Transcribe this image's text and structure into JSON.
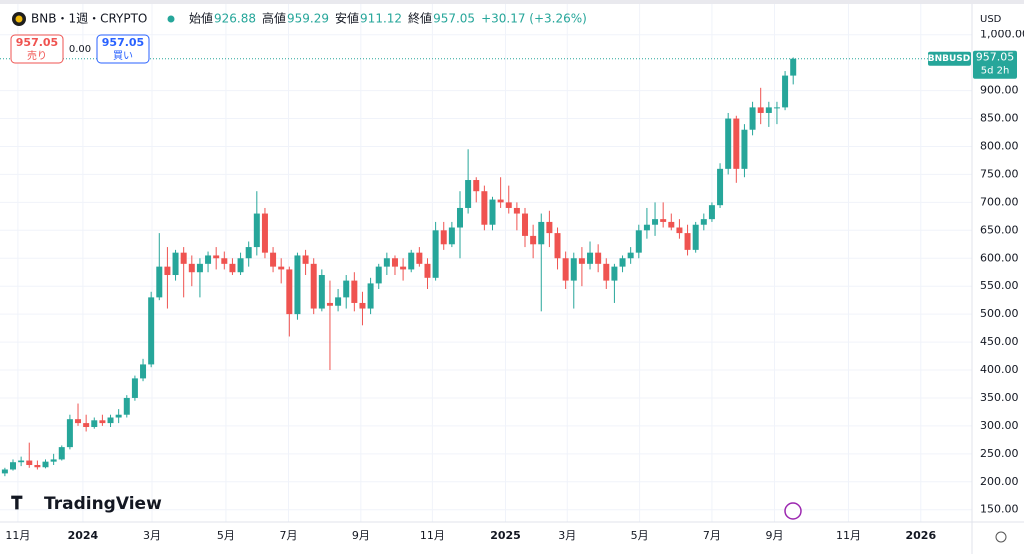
{
  "chart_data": {
    "type": "candlestick",
    "symbol": "BNB・1週・CRYPTO",
    "currency": "USD",
    "ohlc_labels": [
      "始値",
      "高値",
      "安値",
      "終値"
    ],
    "change": "+30.17 (+3.26%)",
    "sell": {
      "price": "957.05",
      "label": "売り"
    },
    "spread": "0.00",
    "buy": {
      "price": "957.05",
      "label": "買い"
    },
    "price_tag": {
      "name": "BNBUSD",
      "countdown": "5d 2h"
    },
    "brand": "TradingView",
    "up_color": "#26a69a",
    "down_color": "#ef5350",
    "grid": true,
    "categories": [
      null,
      null,
      null,
      null,
      null,
      null,
      null,
      null,
      null,
      null,
      null,
      null,
      null,
      null,
      null,
      null,
      null,
      null,
      null,
      null,
      null,
      null,
      null,
      null,
      null,
      null,
      null,
      null,
      null,
      null,
      null,
      null,
      null,
      null,
      null,
      null,
      null,
      null,
      null,
      null,
      null,
      null,
      null,
      null,
      null,
      null,
      null,
      null,
      null,
      null,
      null,
      null,
      null,
      null,
      null,
      null,
      null,
      null,
      null,
      null,
      null,
      null,
      null,
      null,
      null,
      null,
      null,
      null,
      null,
      null,
      null,
      null,
      null,
      null,
      null,
      null,
      null,
      null,
      null,
      null,
      null,
      null,
      null,
      null,
      null,
      null,
      null,
      null,
      null,
      null,
      null,
      null,
      null,
      null,
      null,
      null,
      null,
      null
    ],
    "open": [
      215,
      222,
      235,
      238,
      230,
      226,
      236,
      240,
      262,
      312,
      305,
      298,
      310,
      305,
      315,
      320,
      350,
      385,
      410,
      530,
      585,
      570,
      610,
      590,
      575,
      590,
      605,
      600,
      590,
      575,
      600,
      620,
      680,
      610,
      585,
      580,
      500,
      605,
      590,
      510,
      520,
      515,
      530,
      560,
      520,
      510,
      555,
      585,
      600,
      585,
      580,
      610,
      590,
      565,
      650,
      625,
      655,
      690,
      740,
      720,
      660,
      705,
      700,
      690,
      680,
      640,
      625,
      665,
      645,
      600,
      560,
      600,
      590,
      610,
      590,
      560,
      585,
      600,
      610,
      650,
      660,
      670,
      665,
      655,
      645,
      615,
      660,
      670,
      695,
      760,
      850,
      760,
      830,
      870,
      860,
      870,
      870,
      926.88
    ],
    "high": [
      225,
      240,
      245,
      270,
      238,
      240,
      250,
      265,
      320,
      340,
      320,
      315,
      320,
      320,
      330,
      355,
      390,
      420,
      540,
      645,
      620,
      615,
      620,
      605,
      600,
      612,
      620,
      612,
      600,
      610,
      630,
      720,
      690,
      620,
      600,
      585,
      610,
      615,
      600,
      580,
      560,
      545,
      570,
      575,
      540,
      565,
      590,
      610,
      605,
      600,
      615,
      620,
      600,
      665,
      665,
      665,
      720,
      795,
      745,
      730,
      710,
      745,
      730,
      700,
      690,
      660,
      680,
      685,
      655,
      612,
      610,
      620,
      630,
      625,
      600,
      590,
      605,
      620,
      660,
      690,
      700,
      700,
      680,
      670,
      660,
      665,
      680,
      700,
      770,
      860,
      855,
      840,
      880,
      905,
      880,
      880,
      935,
      959.29
    ],
    "low": [
      210,
      220,
      228,
      225,
      222,
      224,
      230,
      238,
      258,
      300,
      290,
      295,
      300,
      298,
      305,
      315,
      345,
      380,
      405,
      525,
      510,
      560,
      530,
      550,
      530,
      575,
      580,
      580,
      570,
      570,
      585,
      605,
      600,
      575,
      555,
      460,
      490,
      570,
      500,
      505,
      400,
      505,
      510,
      505,
      480,
      500,
      545,
      570,
      570,
      560,
      575,
      585,
      545,
      560,
      615,
      620,
      600,
      680,
      700,
      650,
      650,
      690,
      680,
      650,
      620,
      600,
      505,
      620,
      580,
      545,
      510,
      550,
      580,
      575,
      545,
      520,
      575,
      590,
      600,
      635,
      640,
      655,
      650,
      635,
      605,
      610,
      650,
      665,
      690,
      750,
      735,
      745,
      820,
      840,
      835,
      840,
      865,
      911.12
    ],
    "close": [
      222,
      235,
      238,
      230,
      226,
      236,
      240,
      262,
      312,
      305,
      298,
      310,
      305,
      315,
      320,
      350,
      385,
      410,
      530,
      585,
      570,
      610,
      590,
      575,
      590,
      605,
      600,
      590,
      575,
      600,
      620,
      680,
      610,
      585,
      580,
      500,
      605,
      590,
      510,
      570,
      515,
      530,
      560,
      520,
      510,
      555,
      585,
      600,
      585,
      580,
      610,
      590,
      565,
      650,
      625,
      655,
      690,
      740,
      720,
      660,
      705,
      700,
      690,
      680,
      640,
      625,
      665,
      645,
      600,
      560,
      600,
      590,
      610,
      590,
      560,
      585,
      600,
      610,
      650,
      660,
      670,
      665,
      655,
      645,
      615,
      660,
      670,
      695,
      760,
      850,
      760,
      830,
      870,
      860,
      870,
      870,
      926.88,
      957.05
    ],
    "ylim": [
      128,
      1055
    ],
    "yticks": [
      {
        "value": 150,
        "label": "150.00"
      },
      {
        "value": 200,
        "label": "200.00"
      },
      {
        "value": 250,
        "label": "250.00"
      },
      {
        "value": 300,
        "label": "300.00"
      },
      {
        "value": 350,
        "label": "350.00"
      },
      {
        "value": 400,
        "label": "400.00"
      },
      {
        "value": 450,
        "label": "450.00"
      },
      {
        "value": 500,
        "label": "500.00"
      },
      {
        "value": 550,
        "label": "550.00"
      },
      {
        "value": 600,
        "label": "600.00"
      },
      {
        "value": 650,
        "label": "650.00"
      },
      {
        "value": 700,
        "label": "700.00"
      },
      {
        "value": 750,
        "label": "750.00"
      },
      {
        "value": 800,
        "label": "800.00"
      },
      {
        "value": 850,
        "label": "850.00"
      },
      {
        "value": 900,
        "label": "900.00"
      },
      {
        "value": 1000,
        "label": "1,000.00"
      }
    ],
    "xlim": [
      -0.6,
      119
    ],
    "xticks": [
      {
        "value": 1.6,
        "label": "11月"
      },
      {
        "value": 9.6,
        "label": "2024"
      },
      {
        "value": 18.1,
        "label": "3月"
      },
      {
        "value": 27.2,
        "label": "5月"
      },
      {
        "value": 34.9,
        "label": "7月"
      },
      {
        "value": 43.8,
        "label": "9月"
      },
      {
        "value": 52.6,
        "label": "11月"
      },
      {
        "value": 61.6,
        "label": "2025"
      },
      {
        "value": 69.2,
        "label": "3月"
      },
      {
        "value": 78.1,
        "label": "5月"
      },
      {
        "value": 87.0,
        "label": "7月"
      },
      {
        "value": 94.7,
        "label": "9月"
      },
      {
        "value": 103.8,
        "label": "11月"
      },
      {
        "value": 112.7,
        "label": "2026"
      }
    ]
  }
}
